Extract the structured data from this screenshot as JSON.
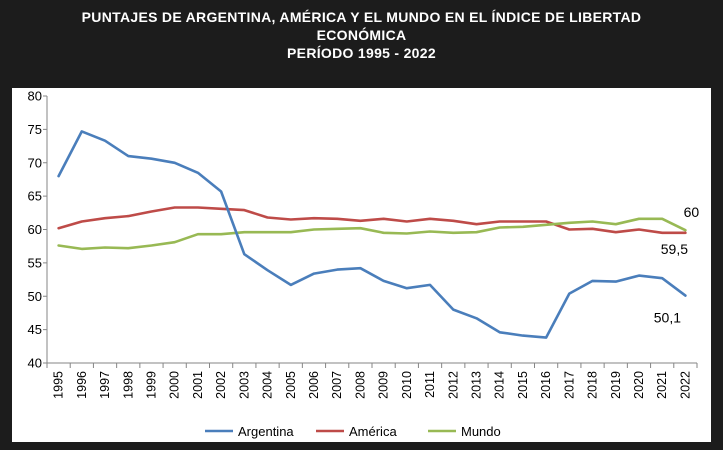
{
  "title": {
    "line1": "PUNTAJES DE ARGENTINA, AMÉRICA Y EL MUNDO EN EL ÍNDICE DE LIBERTAD",
    "line2": "ECONÓMICA",
    "line3": "PERÍODO 1995 - 2022"
  },
  "chart_data": {
    "type": "line",
    "title": "PUNTAJES DE ARGENTINA, AMÉRICA Y EL MUNDO EN EL ÍNDICE DE LIBERTAD ECONÓMICA PERÍODO 1995 - 2022",
    "xlabel": "",
    "ylabel": "",
    "ylim": [
      40,
      80
    ],
    "yticks": [
      40,
      45,
      50,
      55,
      60,
      65,
      70,
      75,
      80
    ],
    "grid": false,
    "legend_position": "bottom",
    "x": [
      "1995",
      "1996",
      "1997",
      "1998",
      "1999",
      "2000",
      "2001",
      "2002",
      "2003",
      "2004",
      "2005",
      "2006",
      "2007",
      "2008",
      "2009",
      "2010",
      "2011",
      "2012",
      "2013",
      "2014",
      "2015",
      "2016",
      "2017",
      "2018",
      "2019",
      "2020",
      "2021",
      "2022"
    ],
    "series": [
      {
        "name": "Argentina",
        "color": "#4a7ebb",
        "values": [
          68.0,
          74.7,
          73.3,
          71.0,
          70.6,
          70.0,
          68.5,
          65.7,
          56.3,
          53.9,
          51.7,
          53.4,
          54.0,
          54.2,
          52.3,
          51.2,
          51.7,
          48.0,
          46.7,
          44.6,
          44.1,
          43.8,
          50.4,
          52.3,
          52.2,
          53.1,
          52.7,
          50.1
        ]
      },
      {
        "name": "América",
        "color": "#be4b48",
        "values": [
          60.2,
          61.2,
          61.7,
          62.0,
          62.7,
          63.3,
          63.3,
          63.1,
          62.9,
          61.8,
          61.5,
          61.7,
          61.6,
          61.3,
          61.6,
          61.2,
          61.6,
          61.3,
          60.8,
          61.2,
          61.2,
          61.2,
          60.0,
          60.1,
          59.6,
          60.0,
          59.5,
          59.5
        ]
      },
      {
        "name": "Mundo",
        "color": "#98b954",
        "values": [
          57.6,
          57.1,
          57.3,
          57.2,
          57.6,
          58.1,
          59.3,
          59.3,
          59.6,
          59.6,
          59.6,
          60.0,
          60.1,
          60.2,
          59.5,
          59.4,
          59.7,
          59.5,
          59.6,
          60.3,
          60.4,
          60.7,
          61.0,
          61.2,
          60.8,
          61.6,
          61.6,
          59.9
        ]
      }
    ],
    "annotations": [
      {
        "text": "60",
        "series": "Mundo",
        "x": "2022",
        "y": 59.9
      },
      {
        "text": "59,5",
        "series": "América",
        "x": "2022",
        "y": 59.5
      },
      {
        "text": "50,1",
        "series": "Argentina",
        "x": "2022",
        "y": 50.1
      }
    ]
  }
}
